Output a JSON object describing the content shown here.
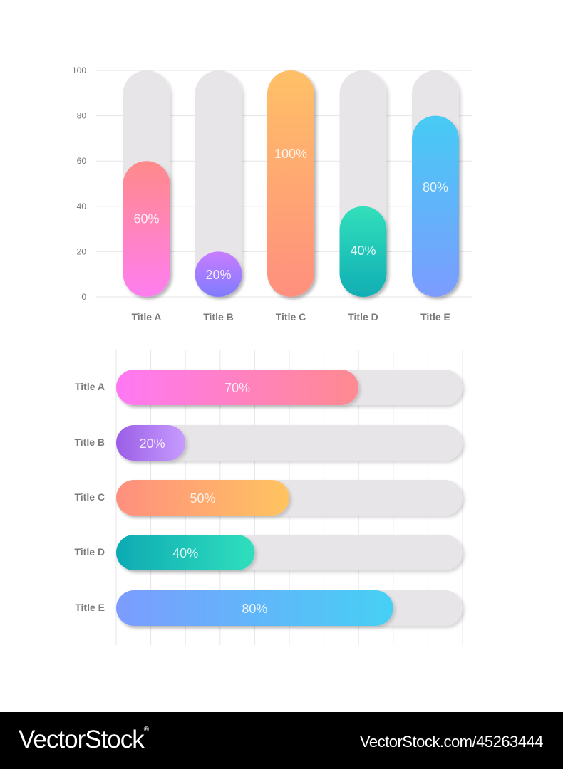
{
  "chart_data": [
    {
      "type": "bar",
      "orientation": "vertical",
      "categories": [
        "Title A",
        "Title B",
        "Title C",
        "Title D",
        "Title E"
      ],
      "values": [
        60,
        20,
        100,
        40,
        80
      ],
      "data_labels": [
        "60%",
        "20%",
        "100%",
        "40%",
        "80%"
      ],
      "y_ticks": [
        "0",
        "20",
        "40",
        "60",
        "80",
        "100"
      ],
      "ylim": [
        0,
        100
      ],
      "grid": true,
      "colors": [
        [
          "#ff7ef0",
          "#ff8a8a"
        ],
        [
          "#7f7bff",
          "#c77dff"
        ],
        [
          "#ff8f7e",
          "#ffc067"
        ],
        [
          "#10aeb4",
          "#32dfbb"
        ],
        [
          "#7c9cff",
          "#46cbf4"
        ]
      ]
    },
    {
      "type": "bar",
      "orientation": "horizontal",
      "categories": [
        "Title A",
        "Title B",
        "Title C",
        "Title D",
        "Title E"
      ],
      "values": [
        70,
        20,
        50,
        40,
        80
      ],
      "data_labels": [
        "70%",
        "20%",
        "50%",
        "40%",
        "80%"
      ],
      "xlim": [
        0,
        100
      ],
      "grid": true,
      "colors": [
        [
          "#ff78f4",
          "#ff8a8f"
        ],
        [
          "#9a5ee6",
          "#c79cff"
        ],
        [
          "#ff8f7e",
          "#ffc460"
        ],
        [
          "#0eaab3",
          "#30dfbd"
        ],
        [
          "#7c9cff",
          "#46d0f4"
        ]
      ]
    }
  ],
  "footer": {
    "brand": "VectorStock",
    "brand_mark": "®",
    "image_id": "VectorStock.com/45263444"
  }
}
